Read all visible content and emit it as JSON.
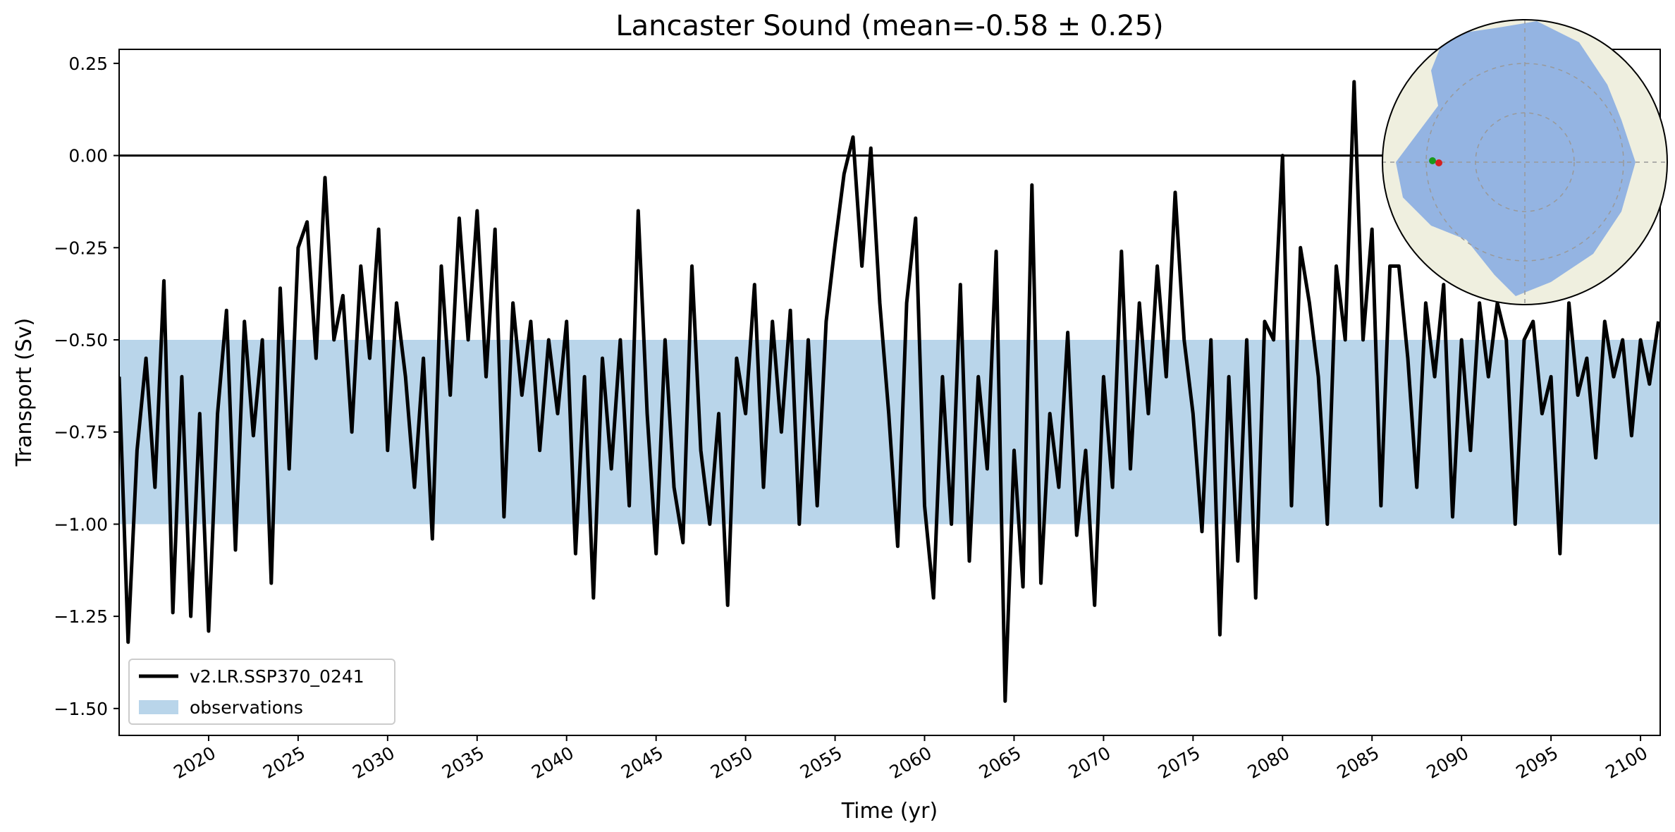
{
  "chart_data": {
    "type": "line",
    "title": "Lancaster Sound (mean=-0.58 ± 0.25)",
    "xlabel": "Time (yr)",
    "ylabel": "Transport (Sv)",
    "x": [
      2015,
      2015.5,
      2016,
      2016.5,
      2017,
      2017.5,
      2018,
      2018.5,
      2019,
      2019.5,
      2020,
      2020.5,
      2021,
      2021.5,
      2022,
      2022.5,
      2023,
      2023.5,
      2024,
      2024.5,
      2025,
      2025.5,
      2026,
      2026.5,
      2027,
      2027.5,
      2028,
      2028.5,
      2029,
      2029.5,
      2030,
      2030.5,
      2031,
      2031.5,
      2032,
      2032.5,
      2033,
      2033.5,
      2034,
      2034.5,
      2035,
      2035.5,
      2036,
      2036.5,
      2037,
      2037.5,
      2038,
      2038.5,
      2039,
      2039.5,
      2040,
      2040.5,
      2041,
      2041.5,
      2042,
      2042.5,
      2043,
      2043.5,
      2044,
      2044.5,
      2045,
      2045.5,
      2046,
      2046.5,
      2047,
      2047.5,
      2048,
      2048.5,
      2049,
      2049.5,
      2050,
      2050.5,
      2051,
      2051.5,
      2052,
      2052.5,
      2053,
      2053.5,
      2054,
      2054.5,
      2055,
      2055.5,
      2056,
      2056.5,
      2057,
      2057.5,
      2058,
      2058.5,
      2059,
      2059.5,
      2060,
      2060.5,
      2061,
      2061.5,
      2062,
      2062.5,
      2063,
      2063.5,
      2064,
      2064.5,
      2065,
      2065.5,
      2066,
      2066.5,
      2067,
      2067.5,
      2068,
      2068.5,
      2069,
      2069.5,
      2070,
      2070.5,
      2071,
      2071.5,
      2072,
      2072.5,
      2073,
      2073.5,
      2074,
      2074.5,
      2075,
      2075.5,
      2076,
      2076.5,
      2077,
      2077.5,
      2078,
      2078.5,
      2079,
      2079.5,
      2080,
      2080.5,
      2081,
      2081.5,
      2082,
      2082.5,
      2083,
      2083.5,
      2084,
      2084.5,
      2085,
      2085.5,
      2086,
      2086.5,
      2087,
      2087.5,
      2088,
      2088.5,
      2089,
      2089.5,
      2090,
      2090.5,
      2091,
      2091.5,
      2092,
      2092.5,
      2093,
      2093.5,
      2094,
      2094.5,
      2095,
      2095.5,
      2096,
      2096.5,
      2097,
      2097.5,
      2098,
      2098.5,
      2099,
      2099.5,
      2100,
      2100.5,
      2101
    ],
    "series": [
      {
        "name": "v2.LR.SSP370_0241",
        "color": "#000000",
        "values": [
          -0.6,
          -1.32,
          -0.8,
          -0.55,
          -0.9,
          -0.34,
          -1.24,
          -0.6,
          -1.25,
          -0.7,
          -1.29,
          -0.7,
          -0.42,
          -1.07,
          -0.45,
          -0.76,
          -0.5,
          -1.16,
          -0.36,
          -0.85,
          -0.25,
          -0.18,
          -0.55,
          -0.06,
          -0.5,
          -0.38,
          -0.75,
          -0.3,
          -0.55,
          -0.2,
          -0.8,
          -0.4,
          -0.6,
          -0.9,
          -0.55,
          -1.04,
          -0.3,
          -0.65,
          -0.17,
          -0.5,
          -0.15,
          -0.6,
          -0.2,
          -0.98,
          -0.4,
          -0.65,
          -0.45,
          -0.8,
          -0.5,
          -0.7,
          -0.45,
          -1.08,
          -0.6,
          -1.2,
          -0.55,
          -0.85,
          -0.5,
          -0.95,
          -0.15,
          -0.7,
          -1.08,
          -0.5,
          -0.9,
          -1.05,
          -0.3,
          -0.8,
          -1.0,
          -0.7,
          -1.22,
          -0.55,
          -0.7,
          -0.35,
          -0.9,
          -0.45,
          -0.75,
          -0.42,
          -1.0,
          -0.5,
          -0.95,
          -0.45,
          -0.24,
          -0.05,
          0.05,
          -0.3,
          0.02,
          -0.4,
          -0.7,
          -1.06,
          -0.4,
          -0.17,
          -0.95,
          -1.2,
          -0.6,
          -1.0,
          -0.35,
          -1.1,
          -0.6,
          -0.85,
          -0.26,
          -1.48,
          -0.8,
          -1.17,
          -0.08,
          -1.16,
          -0.7,
          -0.9,
          -0.48,
          -1.03,
          -0.8,
          -1.22,
          -0.6,
          -0.9,
          -0.26,
          -0.85,
          -0.4,
          -0.7,
          -0.3,
          -0.6,
          -0.1,
          -0.5,
          -0.7,
          -1.02,
          -0.5,
          -1.3,
          -0.6,
          -1.1,
          -0.5,
          -1.2,
          -0.45,
          -0.5,
          0.0,
          -0.95,
          -0.25,
          -0.4,
          -0.6,
          -1.0,
          -0.3,
          -0.5,
          0.2,
          -0.5,
          -0.2,
          -0.95,
          -0.3,
          -0.3,
          -0.55,
          -0.9,
          -0.4,
          -0.6,
          -0.35,
          -0.98,
          -0.5,
          -0.8,
          -0.4,
          -0.6,
          -0.4,
          -0.5,
          -1.0,
          -0.5,
          -0.45,
          -0.7,
          -0.6,
          -1.08,
          -0.4,
          -0.65,
          -0.55,
          -0.82,
          -0.45,
          -0.6,
          -0.5,
          -0.76,
          -0.5,
          -0.62,
          -0.45
        ]
      }
    ],
    "bands": [
      {
        "name": "observations",
        "color": "#b9d5ea",
        "range": [
          -1.0,
          -0.5
        ]
      }
    ],
    "reference_line": 0,
    "xlim": [
      2015,
      2101.1
    ],
    "ylim": [
      -1.573,
      0.288
    ],
    "xticks": [
      2020,
      2025,
      2030,
      2035,
      2040,
      2045,
      2050,
      2055,
      2060,
      2065,
      2070,
      2075,
      2080,
      2085,
      2090,
      2095,
      2100
    ],
    "yticks": [
      {
        "value": 0.25,
        "label": "0.25"
      },
      {
        "value": 0,
        "label": "0.00"
      },
      {
        "value": -0.25,
        "label": "−0.25"
      },
      {
        "value": -0.5,
        "label": "−0.50"
      },
      {
        "value": -0.75,
        "label": "−0.75"
      },
      {
        "value": -1.0,
        "label": "−1.00"
      },
      {
        "value": -1.25,
        "label": "−1.25"
      },
      {
        "value": -1.5,
        "label": "−1.50"
      }
    ],
    "legend": "lower left"
  }
}
